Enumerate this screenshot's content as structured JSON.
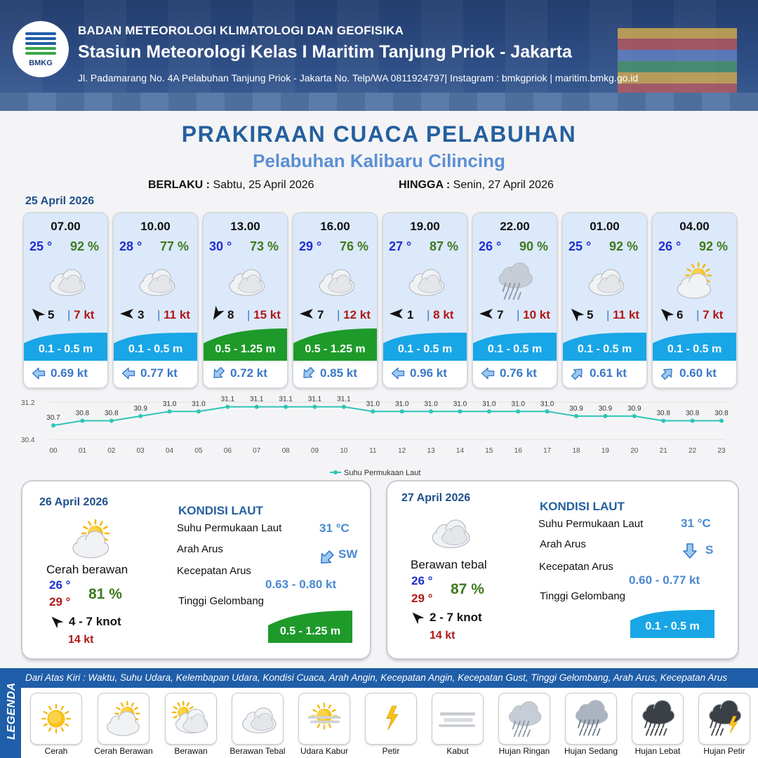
{
  "header": {
    "logo_text": "BMKG",
    "line1": "BADAN METEOROLOGI KLIMATOLOGI DAN GEOFISIKA",
    "line2": "Stasiun Meteorologi Kelas I Maritim Tanjung Priok - Jakarta",
    "line3": "Jl. Padamarang No. 4A Pelabuhan Tanjung Priok - Jakarta No. Telp/WA 0811924797| Instagram : bmkgpriok | maritim.bmkg.go.id"
  },
  "title": "PRAKIRAAN CUACA PELABUHAN",
  "subtitle": "Pelabuhan Kalibaru Cilincing",
  "validity": {
    "from_label": "BERLAKU :",
    "from_value": "Sabtu, 25 April 2026",
    "to_label": "HINGGA :",
    "to_value": "Senin, 27 April 2026"
  },
  "hourly_date": "25 April 2026",
  "hourly": [
    {
      "time": "07.00",
      "temp": "25 °",
      "rh": "92 %",
      "icon": "berawan-tebal",
      "wind_dir_deg": 315,
      "wind": "5",
      "gust": "7 kt",
      "wave": "0.1 - 0.5 m",
      "wave_level": "low",
      "current_dir_deg": 270,
      "current": "0.69 kt"
    },
    {
      "time": "10.00",
      "temp": "28 °",
      "rh": "77 %",
      "icon": "berawan-tebal",
      "wind_dir_deg": 270,
      "wind": "3",
      "gust": "11 kt",
      "wave": "0.1 - 0.5 m",
      "wave_level": "low",
      "current_dir_deg": 270,
      "current": "0.77 kt"
    },
    {
      "time": "13.00",
      "temp": "30 °",
      "rh": "73 %",
      "icon": "berawan-tebal",
      "wind_dir_deg": 210,
      "wind": "8",
      "gust": "15 kt",
      "wave": "0.5 - 1.25 m",
      "wave_level": "moderate",
      "current_dir_deg": 225,
      "current": "0.72 kt"
    },
    {
      "time": "16.00",
      "temp": "29 °",
      "rh": "76 %",
      "icon": "berawan-tebal",
      "wind_dir_deg": 270,
      "wind": "7",
      "gust": "12 kt",
      "wave": "0.5 - 1.25 m",
      "wave_level": "moderate",
      "current_dir_deg": 225,
      "current": "0.85 kt"
    },
    {
      "time": "19.00",
      "temp": "27 °",
      "rh": "87 %",
      "icon": "berawan-tebal",
      "wind_dir_deg": 270,
      "wind": "1",
      "gust": "8 kt",
      "wave": "0.1 - 0.5 m",
      "wave_level": "low",
      "current_dir_deg": 270,
      "current": "0.96 kt"
    },
    {
      "time": "22.00",
      "temp": "26 °",
      "rh": "90 %",
      "icon": "hujan-ringan",
      "wind_dir_deg": 270,
      "wind": "7",
      "gust": "10 kt",
      "wave": "0.1 - 0.5 m",
      "wave_level": "low",
      "current_dir_deg": 270,
      "current": "0.76 kt"
    },
    {
      "time": "01.00",
      "temp": "25 °",
      "rh": "92 %",
      "icon": "berawan-tebal",
      "wind_dir_deg": 315,
      "wind": "5",
      "gust": "11 kt",
      "wave": "0.1 - 0.5 m",
      "wave_level": "low",
      "current_dir_deg": 45,
      "current": "0.61 kt"
    },
    {
      "time": "04.00",
      "temp": "26 °",
      "rh": "92 %",
      "icon": "cerah-berawan",
      "wind_dir_deg": 315,
      "wind": "6",
      "gust": "7 kt",
      "wave": "0.1 - 0.5 m",
      "wave_level": "low",
      "current_dir_deg": 45,
      "current": "0.60 kt"
    }
  ],
  "chart_data": {
    "type": "line",
    "x": [
      "00",
      "01",
      "02",
      "03",
      "04",
      "05",
      "06",
      "07",
      "08",
      "09",
      "10",
      "11",
      "12",
      "13",
      "14",
      "15",
      "16",
      "17",
      "18",
      "19",
      "20",
      "21",
      "22",
      "23"
    ],
    "series": [
      {
        "name": "Suhu Permukaan Laut",
        "values": [
          30.7,
          30.8,
          30.8,
          30.9,
          31.0,
          31.0,
          31.1,
          31.1,
          31.1,
          31.1,
          31.1,
          31.0,
          31.0,
          31.0,
          31.0,
          31.0,
          31.0,
          31.0,
          30.9,
          30.9,
          30.9,
          30.8,
          30.8,
          30.8
        ],
        "labels": [
          "30.7",
          "30.8",
          "30.8",
          "30.9",
          "31.0",
          "31.0",
          "31.1",
          "31.1",
          "31.1",
          "31.1",
          "31.1",
          "31.0",
          "31.0",
          "31.0",
          "31.0",
          "31.0",
          "31.0",
          "31.0",
          "30.9",
          "30.9",
          "30.9",
          "30.8",
          "30.8",
          "30.8"
        ],
        "color": "#2ec4b6"
      }
    ],
    "ylim": [
      30.4,
      31.2
    ],
    "yticks": [
      "30.4",
      "31.2"
    ],
    "grid": true,
    "legend": "bottom-center"
  },
  "days": [
    {
      "date": "26 April 2026",
      "icon": "cerah-berawan",
      "condition": "Cerah berawan",
      "tmin": "26 °",
      "tmax": "29 °",
      "rh": "81 %",
      "wind_dir_deg": 315,
      "wind": "4  - 7 knot",
      "gust": "14 kt",
      "sea_title": "KONDISI LAUT",
      "sst_label": "Suhu Permukaan Laut",
      "sst": "31 °C",
      "current_dir_label": "Arah Arus",
      "current_dir": "SW",
      "current_dir_deg": 225,
      "current_speed_label": "Kecepatan Arus",
      "current_speed": "0.63  - 0.80 kt",
      "wave_label": "Tinggi Gelombang",
      "wave": "0.5 - 1.25 m",
      "wave_level": "moderate"
    },
    {
      "date": "27 April 2026",
      "icon": "berawan-tebal",
      "condition": "Berawan tebal",
      "tmin": "26 °",
      "tmax": "29 °",
      "rh": "87 %",
      "wind_dir_deg": 315,
      "wind": "2  - 7 knot",
      "gust": "14 kt",
      "sea_title": "KONDISI LAUT",
      "sst_label": "Suhu Permukaan Laut",
      "sst": "31 °C",
      "current_dir_label": "Arah Arus",
      "current_dir": "S",
      "current_dir_deg": 180,
      "current_speed_label": "Kecepatan Arus",
      "current_speed": "0.60  - 0.77 kt",
      "wave_label": "Tinggi Gelombang",
      "wave": "0.1 - 0.5 m",
      "wave_level": "low"
    }
  ],
  "legend": {
    "side_label": "LEGENDA",
    "description": "Dari Atas Kiri : Waktu, Suhu Udara, Kelembapan Udara, Kondisi Cuaca, Arah Angin, Kecepatan Angin, Kecepatan Gust, Tinggi Gelombang, Arah Arus, Kecepatan Arus",
    "items": [
      {
        "label": "Cerah",
        "icon": "cerah"
      },
      {
        "label": "Cerah Berawan",
        "icon": "cerah-berawan"
      },
      {
        "label": "Berawan",
        "icon": "berawan"
      },
      {
        "label": "Berawan Tebal",
        "icon": "berawan-tebal"
      },
      {
        "label": "Udara Kabur",
        "icon": "udara-kabur"
      },
      {
        "label": "Petir",
        "icon": "petir"
      },
      {
        "label": "Kabut",
        "icon": "kabut"
      },
      {
        "label": "Hujan Ringan",
        "icon": "hujan-ringan"
      },
      {
        "label": "Hujan Sedang",
        "icon": "hujan-sedang"
      },
      {
        "label": "Hujan Lebat",
        "icon": "hujan-lebat"
      },
      {
        "label": "Hujan Petir",
        "icon": "hujan-petir"
      }
    ]
  },
  "colors": {
    "wave_low": "#19a6e6",
    "wave_moderate": "#1e9a2a",
    "title": "#24609e",
    "subtitle": "#5b8fd4",
    "temp": "#1f2fd0",
    "humidity": "#3e7a1f",
    "gust": "#b01818",
    "current": "#3a78c9"
  }
}
